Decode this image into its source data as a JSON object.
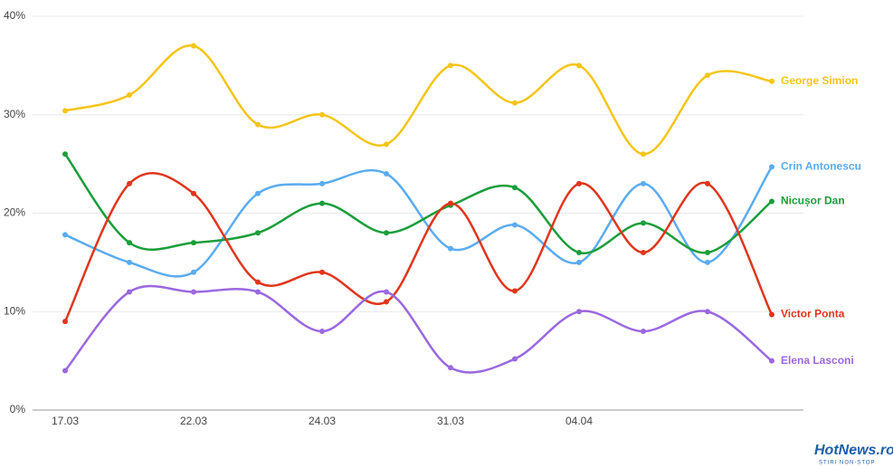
{
  "chart_data": {
    "type": "line",
    "categories": [
      "17.03",
      null,
      "22.03",
      null,
      "24.03",
      null,
      "31.03",
      null,
      "04.04",
      null,
      null,
      null
    ],
    "series": [
      {
        "name": "George Simion",
        "color": "#f5c518",
        "values": [
          30.4,
          32,
          37,
          29,
          30,
          27,
          35,
          31.2,
          35,
          26,
          34,
          33.4
        ]
      },
      {
        "name": "Crin Antonescu",
        "color": "#5aacf0",
        "values": [
          17.8,
          15,
          14,
          22,
          23,
          24,
          16.4,
          18.8,
          15,
          23,
          15,
          24.7
        ]
      },
      {
        "name": "Nicușor Dan",
        "color": "#1a9e3a",
        "values": [
          26,
          17,
          17,
          18,
          21,
          18,
          20.8,
          22.6,
          16,
          19,
          16,
          21.2
        ]
      },
      {
        "name": "Victor Ponta",
        "color": "#e0361c",
        "values": [
          9,
          23,
          22,
          13,
          14,
          11,
          21,
          12.1,
          23,
          16,
          23,
          9.7
        ]
      },
      {
        "name": "Elena Lasconi",
        "color": "#9a68e0",
        "values": [
          4,
          12,
          12,
          12,
          8,
          12,
          4.3,
          5.2,
          10,
          8,
          10,
          5
        ]
      }
    ],
    "ylim": [
      0,
      40
    ],
    "yticks": [
      {
        "value": 0,
        "label": "0%"
      },
      {
        "value": 10,
        "label": "10%"
      },
      {
        "value": 20,
        "label": "20%"
      },
      {
        "value": 30,
        "label": "30%"
      },
      {
        "value": 40,
        "label": "40%"
      }
    ],
    "grid": true,
    "logo": {
      "name": "HotNews.ro",
      "tagline": "STIRI NON-STOP"
    }
  }
}
